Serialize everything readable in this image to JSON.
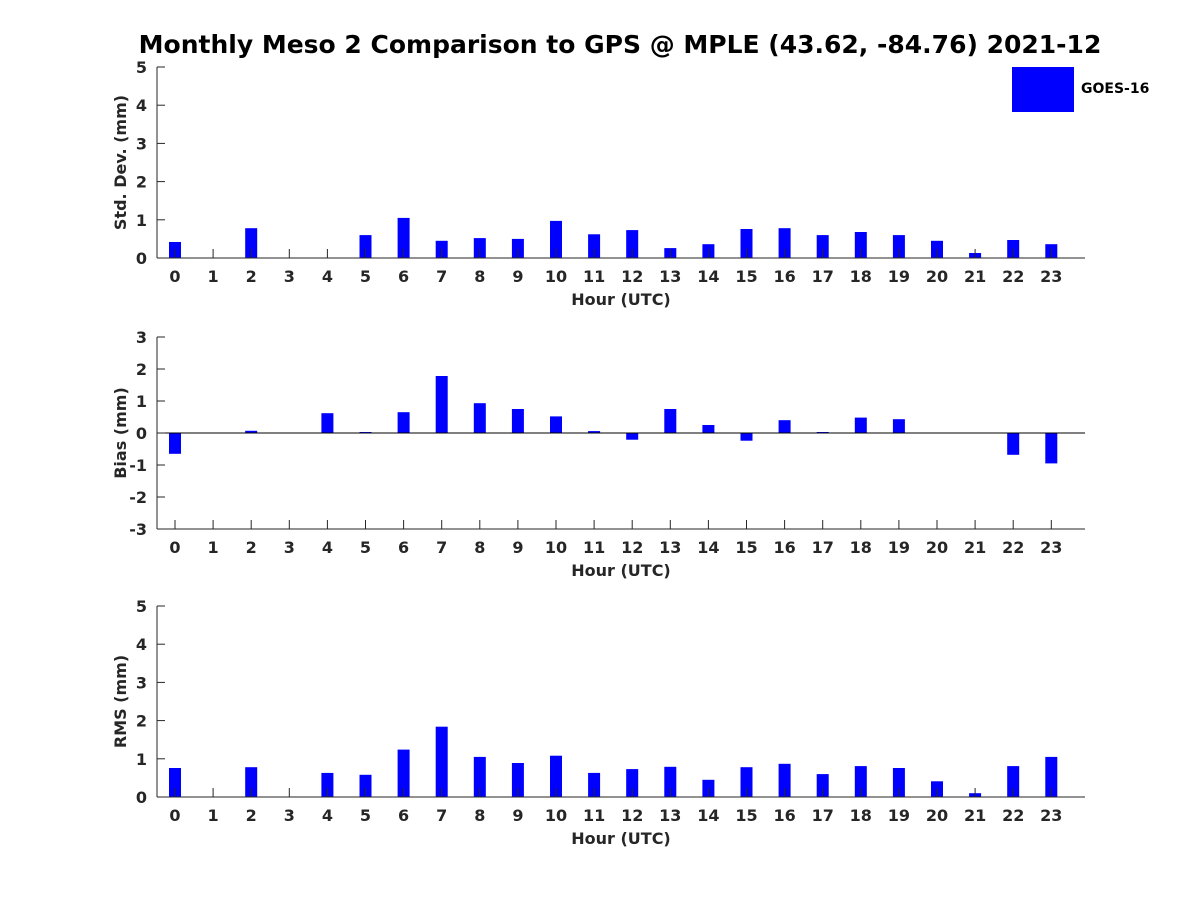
{
  "title": "Monthly Meso 2 Comparison to GPS @ MPLE (43.62, -84.76) 2021-12",
  "colors": {
    "bar": "#0000ff",
    "axis": "#262626",
    "zero_line": "#000000"
  },
  "legend": {
    "label": "GOES-16",
    "placement": "top-right"
  },
  "chart_data": [
    {
      "type": "bar",
      "panel": "std",
      "xlabel": "Hour (UTC)",
      "ylabel": "Std. Dev. (mm)",
      "ylim": [
        0,
        5
      ],
      "yticks": [
        0,
        1,
        2,
        3,
        4,
        5
      ],
      "grid": false,
      "categories": [
        "0",
        "1",
        "2",
        "3",
        "4",
        "5",
        "6",
        "7",
        "8",
        "9",
        "10",
        "11",
        "12",
        "13",
        "14",
        "15",
        "16",
        "17",
        "18",
        "19",
        "20",
        "21",
        "22",
        "23"
      ],
      "series": [
        {
          "name": "GOES-16",
          "values": [
            0.42,
            null,
            0.78,
            null,
            null,
            0.6,
            1.05,
            0.45,
            0.52,
            0.5,
            0.97,
            0.62,
            0.73,
            0.26,
            0.36,
            0.76,
            0.78,
            0.6,
            0.68,
            0.6,
            0.45,
            0.13,
            0.47,
            0.36
          ]
        }
      ]
    },
    {
      "type": "bar",
      "panel": "bias",
      "xlabel": "Hour (UTC)",
      "ylabel": "Bias (mm)",
      "ylim": [
        -3,
        3
      ],
      "yticks": [
        -3,
        -2,
        -1,
        0,
        1,
        2,
        3
      ],
      "grid": false,
      "categories": [
        "0",
        "1",
        "2",
        "3",
        "4",
        "5",
        "6",
        "7",
        "8",
        "9",
        "10",
        "11",
        "12",
        "13",
        "14",
        "15",
        "16",
        "17",
        "18",
        "19",
        "20",
        "21",
        "22",
        "23"
      ],
      "series": [
        {
          "name": "GOES-16",
          "values": [
            -0.65,
            null,
            0.07,
            null,
            0.62,
            0.03,
            0.65,
            1.78,
            0.93,
            0.75,
            0.52,
            0.06,
            -0.21,
            0.75,
            0.25,
            -0.24,
            0.4,
            0.03,
            0.48,
            0.43,
            null,
            null,
            -0.68,
            -0.95
          ]
        }
      ]
    },
    {
      "type": "bar",
      "panel": "rms",
      "xlabel": "Hour (UTC)",
      "ylabel": "RMS (mm)",
      "ylim": [
        0,
        5
      ],
      "yticks": [
        0,
        1,
        2,
        3,
        4,
        5
      ],
      "grid": false,
      "categories": [
        "0",
        "1",
        "2",
        "3",
        "4",
        "5",
        "6",
        "7",
        "8",
        "9",
        "10",
        "11",
        "12",
        "13",
        "14",
        "15",
        "16",
        "17",
        "18",
        "19",
        "20",
        "21",
        "22",
        "23"
      ],
      "series": [
        {
          "name": "GOES-16",
          "values": [
            0.76,
            null,
            0.78,
            null,
            0.63,
            0.58,
            1.24,
            1.84,
            1.05,
            0.89,
            1.08,
            0.63,
            0.73,
            0.79,
            0.45,
            0.78,
            0.87,
            0.6,
            0.81,
            0.76,
            0.41,
            0.1,
            0.81,
            1.05
          ]
        }
      ]
    }
  ]
}
